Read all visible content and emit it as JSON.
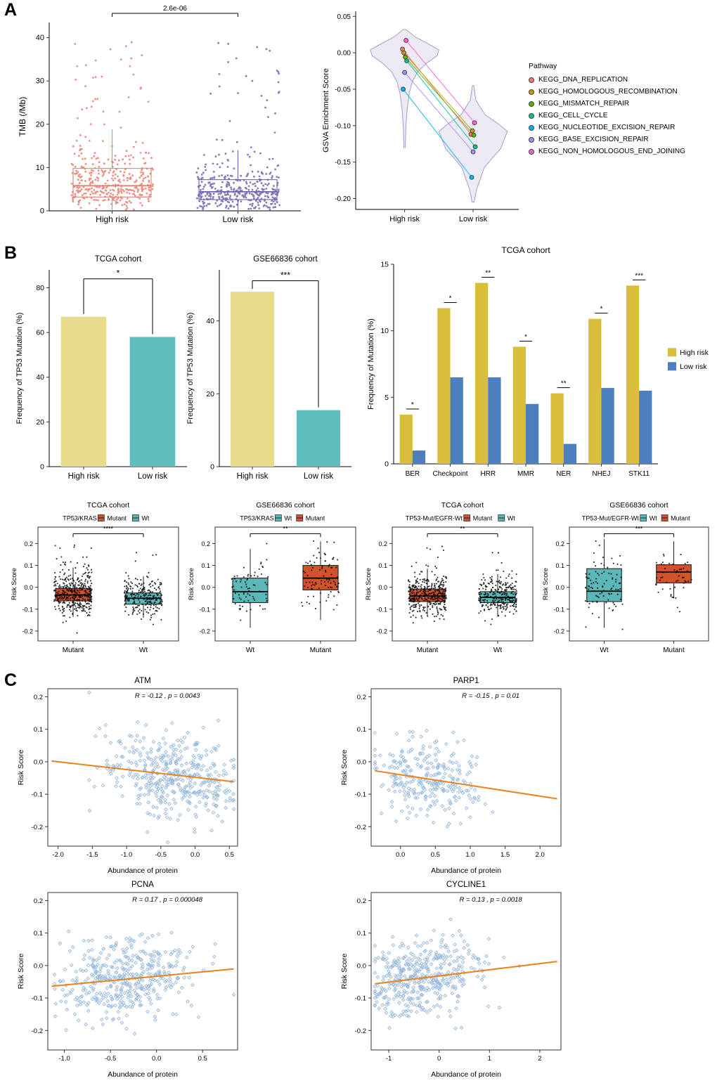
{
  "panels": {
    "a": "A",
    "b": "B",
    "c": "C"
  },
  "chart_data": [
    {
      "id": "tmb",
      "panel": "A",
      "type": "boxplot-jitter",
      "title": "",
      "ylabel": "TMB (/Mb)",
      "ylim": [
        0,
        43.5
      ],
      "yticks": [
        0,
        10,
        20,
        30,
        40
      ],
      "ytick_labels": [
        "0",
        "10",
        "20",
        "30",
        "40"
      ],
      "categories": [
        "High risk",
        "Low risk"
      ],
      "significance": {
        "label": "2.6e-06",
        "y": 45.6
      },
      "frame": "LB",
      "box_fill": "none",
      "point_color": "group",
      "groups": [
        {
          "label": "High risk",
          "color": "#E57E6E",
          "box": {
            "q1": 3.2,
            "median": 5.8,
            "q3": 9.8,
            "lo": 0.2,
            "hi": 18.8
          },
          "points": {
            "n": 380,
            "center": 5.8,
            "sd_dn": 2.6,
            "sd_up": 4.8,
            "min": 0.2,
            "max": 18.5,
            "out_frac": 0.105,
            "out_min": 19,
            "out_max": 39
          }
        },
        {
          "label": "Low risk",
          "color": "#6C64AB",
          "box": {
            "q1": 2.6,
            "median": 4.4,
            "q3": 7.2,
            "lo": 0.2,
            "hi": 14.0
          },
          "points": {
            "n": 380,
            "center": 4.4,
            "sd_dn": 2.1,
            "sd_up": 3.6,
            "min": 0.2,
            "max": 13.8,
            "out_frac": 0.09,
            "out_min": 14.5,
            "out_max": 39
          }
        }
      ]
    },
    {
      "id": "gsva",
      "panel": "A",
      "type": "violin-paired",
      "ylabel": "GSVA Enrichment Score",
      "ylim": [
        -0.215,
        0.057
      ],
      "yticks": [
        0.05,
        0.0,
        -0.05,
        -0.1,
        -0.15,
        -0.2
      ],
      "ytick_labels": [
        "0.05",
        "0.00",
        "-0.05",
        "-0.10",
        "-0.15",
        "-0.20"
      ],
      "categories": [
        "High risk",
        "Low risk"
      ],
      "violin": {
        "fill": "#EDEAF6",
        "stroke": "#9C93C6"
      },
      "profiles": [
        [
          [
            0.032,
            0.04
          ],
          [
            0.022,
            0.3
          ],
          [
            0.012,
            0.7
          ],
          [
            0.004,
            1.0
          ],
          [
            -0.004,
            0.95
          ],
          [
            -0.014,
            0.65
          ],
          [
            -0.026,
            0.38
          ],
          [
            -0.04,
            0.22
          ],
          [
            -0.055,
            0.14
          ],
          [
            -0.075,
            0.08
          ],
          [
            -0.1,
            0.04
          ],
          [
            -0.13,
            0.02
          ]
        ],
        [
          [
            -0.045,
            0.02
          ],
          [
            -0.065,
            0.08
          ],
          [
            -0.085,
            0.35
          ],
          [
            -0.098,
            0.75
          ],
          [
            -0.108,
            1.0
          ],
          [
            -0.12,
            0.9
          ],
          [
            -0.132,
            0.8
          ],
          [
            -0.145,
            0.55
          ],
          [
            -0.158,
            0.32
          ],
          [
            -0.172,
            0.22
          ],
          [
            -0.188,
            0.1
          ],
          [
            -0.205,
            0.03
          ]
        ]
      ],
      "legend_title": "Pathway",
      "pathways": [
        {
          "label": "KEGG_DNA_REPLICATION",
          "color": "#F8766D",
          "high": 0.005,
          "low": -0.112
        },
        {
          "label": "KEGG_HOMOLOGOUS_RECOMBINATION",
          "color": "#C49A00",
          "high": 0.0,
          "low": -0.107
        },
        {
          "label": "KEGG_MISMATCH_REPAIR",
          "color": "#53B400",
          "high": -0.006,
          "low": -0.113
        },
        {
          "label": "KEGG_CELL_CYCLE",
          "color": "#00C094",
          "high": -0.011,
          "low": -0.129
        },
        {
          "label": "KEGG_NUCLEOTIDE_EXCISION_REPAIR",
          "color": "#00B6EB",
          "high": -0.05,
          "low": -0.171
        },
        {
          "label": "KEGG_BASE_EXCISION_REPAIR",
          "color": "#A58AFF",
          "high": -0.027,
          "low": -0.136
        },
        {
          "label": "KEGG_NON_HOMOLOGOUS_END_JOINING",
          "color": "#FB61D7",
          "high": 0.017,
          "low": -0.096
        }
      ]
    },
    {
      "id": "tp53_tcga",
      "panel": "B",
      "type": "bar",
      "title": "TCGA cohort",
      "ylabel": "Frequency of TP53 Mutation (%)",
      "ylim": [
        0,
        88
      ],
      "yticks": [
        0,
        20,
        40,
        60,
        80
      ],
      "ytick_labels": [
        "0",
        "20",
        "40",
        "60",
        "80"
      ],
      "categories": [
        "High risk",
        "Low risk"
      ],
      "values": [
        67,
        58
      ],
      "colors": [
        "#E8DC8B",
        "#5FBFBF"
      ],
      "significance": {
        "label": "*",
        "bracket_y": 84
      }
    },
    {
      "id": "tp53_gse",
      "panel": "B",
      "type": "bar",
      "title": "GSE66836 cohort",
      "ylabel": "Frequency of TP53 Mutation (%)",
      "ylim": [
        0,
        54
      ],
      "yticks": [
        0,
        20,
        40
      ],
      "ytick_labels": [
        "0",
        "20",
        "40"
      ],
      "categories": [
        "High risk",
        "Low risk"
      ],
      "values": [
        48,
        15.5
      ],
      "colors": [
        "#E8DC8B",
        "#5FBFBF"
      ],
      "significance": {
        "label": "***",
        "bracket_y": 51
      }
    },
    {
      "id": "mutation_freq",
      "panel": "B",
      "type": "grouped-bar",
      "title": "TCGA cohort",
      "ylabel": "Frequency of Mutation (%)",
      "ylim": [
        0,
        15
      ],
      "yticks": [
        0,
        5,
        10,
        15
      ],
      "ytick_labels": [
        "0",
        "5",
        "10",
        "15"
      ],
      "categories": [
        "BER",
        "Checkpoint",
        "HRR",
        "MMR",
        "NER",
        "NHEJ",
        "STK11"
      ],
      "series": [
        {
          "name": "High risk",
          "color": "#D9BE3C",
          "values": [
            3.7,
            11.7,
            13.6,
            8.8,
            5.3,
            10.9,
            13.4
          ]
        },
        {
          "name": "Low risk",
          "color": "#4D7EBE",
          "values": [
            1.0,
            6.5,
            6.5,
            4.5,
            1.5,
            5.7,
            5.5
          ]
        }
      ],
      "significance": [
        "*",
        "*",
        "**",
        "*",
        "**",
        "*",
        "***"
      ],
      "legend_position": "right"
    },
    {
      "id": "box_tcga_kras",
      "panel": "B",
      "type": "boxplot-jitter",
      "title": "TCGA cohort",
      "legend": {
        "title": "TP53/KRAS",
        "items": [
          {
            "label": "Mutant",
            "color": "#D0532C"
          },
          {
            "label": "Wt",
            "color": "#5CB8B8"
          }
        ]
      },
      "ylabel": "Risk Score",
      "ylim": [
        -0.245,
        0.275
      ],
      "yticks": [
        -0.2,
        -0.1,
        0,
        0.1,
        0.2
      ],
      "ytick_labels": [
        "-0.2",
        "-0.1",
        "0.0",
        "0.1",
        "0.2"
      ],
      "categories": [
        "Mutant",
        "Wt"
      ],
      "significance": {
        "label": "****",
        "y": 0.245
      },
      "frame": "box",
      "box_fill": "group",
      "point_color": "#000",
      "groups": [
        {
          "label": "Mutant",
          "color": "#D0532C",
          "box": {
            "q1": -0.062,
            "median": -0.035,
            "q3": -0.006,
            "lo": -0.135,
            "hi": 0.09
          },
          "points": {
            "n": 430,
            "center": -0.034,
            "sd_dn": 0.045,
            "sd_up": 0.055,
            "min": -0.225,
            "max": 0.2,
            "out_frac": 0.02,
            "out_min": 0.1,
            "out_max": 0.2
          }
        },
        {
          "label": "Wt",
          "color": "#5CB8B8",
          "box": {
            "q1": -0.077,
            "median": -0.05,
            "q3": -0.026,
            "lo": -0.14,
            "hi": 0.05
          },
          "points": {
            "n": 250,
            "center": -0.05,
            "sd_dn": 0.042,
            "sd_up": 0.05,
            "min": -0.225,
            "max": 0.16,
            "out_frac": 0.015,
            "out_min": 0.05,
            "out_max": 0.16
          }
        }
      ]
    },
    {
      "id": "box_gse_kras",
      "panel": "B",
      "type": "boxplot-jitter",
      "title": "GSE66836 cohort",
      "legend": {
        "title": "TP53/KRAS",
        "items": [
          {
            "label": "Wt",
            "color": "#5CB8B8"
          },
          {
            "label": "Mutant",
            "color": "#D0532C"
          }
        ]
      },
      "ylabel": "Risk Score",
      "ylim": [
        -0.245,
        0.275
      ],
      "yticks": [
        -0.2,
        -0.1,
        0,
        0.1,
        0.2
      ],
      "ytick_labels": [
        "-0.2",
        "-0.1",
        "0.0",
        "0.1",
        "0.2"
      ],
      "categories": [
        "Wt",
        "Mutant"
      ],
      "significance": {
        "label": "**",
        "y": 0.245
      },
      "frame": "box",
      "box_fill": "group",
      "point_color": "#000",
      "groups": [
        {
          "label": "Wt",
          "color": "#5CB8B8",
          "box": {
            "q1": -0.07,
            "median": -0.02,
            "q3": 0.042,
            "lo": -0.185,
            "hi": 0.175
          },
          "points": {
            "n": 72,
            "center": -0.015,
            "sd_dn": 0.07,
            "sd_up": 0.07,
            "min": -0.19,
            "max": 0.2,
            "out_frac": 0.0,
            "out_min": 0,
            "out_max": 0
          }
        },
        {
          "label": "Mutant",
          "color": "#D0532C",
          "box": {
            "q1": -0.012,
            "median": 0.042,
            "q3": 0.1,
            "lo": -0.15,
            "hi": 0.21
          },
          "points": {
            "n": 92,
            "center": 0.04,
            "sd_dn": 0.07,
            "sd_up": 0.07,
            "min": -0.16,
            "max": 0.22,
            "out_frac": 0.0,
            "out_min": 0,
            "out_max": 0
          }
        }
      ]
    },
    {
      "id": "box_tcga_egfr",
      "panel": "B",
      "type": "boxplot-jitter",
      "title": "TCGA cohort",
      "legend": {
        "title": "TP53-Mut/EGFR-Wt",
        "items": [
          {
            "label": "Mutant",
            "color": "#D0532C"
          },
          {
            "label": "Wt",
            "color": "#5CB8B8"
          }
        ]
      },
      "ylabel": "Risk Score",
      "ylim": [
        -0.245,
        0.275
      ],
      "yticks": [
        -0.2,
        -0.1,
        0,
        0.1,
        0.2
      ],
      "ytick_labels": [
        "-0.2",
        "-0.1",
        "0.0",
        "0.1",
        "0.2"
      ],
      "categories": [
        "Mutant",
        "Wt"
      ],
      "significance": {
        "label": "**",
        "y": 0.245
      },
      "frame": "box",
      "box_fill": "group",
      "point_color": "#000",
      "groups": [
        {
          "label": "Mutant",
          "color": "#D0532C",
          "box": {
            "q1": -0.065,
            "median": -0.04,
            "q3": -0.008,
            "lo": -0.13,
            "hi": 0.085
          },
          "points": {
            "n": 400,
            "center": -0.037,
            "sd_dn": 0.045,
            "sd_up": 0.05,
            "min": -0.22,
            "max": 0.2,
            "out_frac": 0.02,
            "out_min": 0.09,
            "out_max": 0.2
          }
        },
        {
          "label": "Wt",
          "color": "#5CB8B8",
          "box": {
            "q1": -0.07,
            "median": -0.046,
            "q3": -0.02,
            "lo": -0.135,
            "hi": 0.06
          },
          "points": {
            "n": 300,
            "center": -0.045,
            "sd_dn": 0.042,
            "sd_up": 0.048,
            "min": -0.22,
            "max": 0.18,
            "out_frac": 0.015,
            "out_min": 0.06,
            "out_max": 0.18
          }
        }
      ]
    },
    {
      "id": "box_gse_egfr",
      "panel": "B",
      "type": "boxplot-jitter",
      "title": "GSE66836 cohort",
      "legend": {
        "title": "TP53-Mut/EGFR-Wt",
        "items": [
          {
            "label": "Wt",
            "color": "#5CB8B8"
          },
          {
            "label": "Mutant",
            "color": "#D0532C"
          }
        ]
      },
      "ylabel": "Risk Score",
      "ylim": [
        -0.245,
        0.275
      ],
      "yticks": [
        -0.2,
        -0.1,
        0,
        0.1,
        0.2
      ],
      "ytick_labels": [
        "-0.2",
        "-0.1",
        "0.0",
        "0.1",
        "0.2"
      ],
      "categories": [
        "Wt",
        "Mutant"
      ],
      "significance": {
        "label": "***",
        "y": 0.245
      },
      "frame": "box",
      "box_fill": "group",
      "point_color": "#000",
      "groups": [
        {
          "label": "Wt",
          "color": "#5CB8B8",
          "box": {
            "q1": -0.065,
            "median": -0.018,
            "q3": 0.085,
            "lo": -0.185,
            "hi": 0.22
          },
          "points": {
            "n": 95,
            "center": 0.0,
            "sd_dn": 0.075,
            "sd_up": 0.08,
            "min": -0.21,
            "max": 0.24,
            "out_frac": 0.0,
            "out_min": 0,
            "out_max": 0
          }
        },
        {
          "label": "Mutant",
          "color": "#D0532C",
          "box": {
            "q1": 0.02,
            "median": 0.07,
            "q3": 0.103,
            "lo": -0.05,
            "hi": 0.21
          },
          "points": {
            "n": 52,
            "center": 0.06,
            "sd_dn": 0.07,
            "sd_up": 0.06,
            "min": -0.17,
            "max": 0.22,
            "out_frac": 0.0,
            "out_min": 0,
            "out_max": 0
          }
        }
      ]
    },
    {
      "id": "atm",
      "panel": "C",
      "type": "scatter",
      "title": "ATM",
      "xlabel": "Abundance of protein",
      "ylabel": "Risk Score",
      "annotation": "R = -0.12 , p = 0.0043",
      "xlim": [
        -2.15,
        0.62
      ],
      "xticks": [
        -2.0,
        -1.5,
        -1.0,
        -0.5,
        0.0,
        0.5
      ],
      "xtick_labels": [
        "-2.0",
        "-1.5",
        "-1.0",
        "-0.5",
        "0.0",
        "0.5"
      ],
      "ylim": [
        -0.26,
        0.225
      ],
      "yticks": [
        -0.2,
        -0.1,
        0,
        0.1,
        0.2
      ],
      "ytick_labels": [
        "-0.2",
        "-0.1",
        "0.0",
        "0.1",
        "0.2"
      ],
      "n": 420,
      "x_mean": -0.35,
      "x_sd": 0.5,
      "slope": -0.024,
      "intercept": -0.048,
      "resid_sd": 0.062,
      "point_color": "#7BA6D5",
      "line_color": "#E8821E"
    },
    {
      "id": "parp1",
      "panel": "C",
      "type": "scatter",
      "title": "PARP1",
      "xlabel": "Abundance of protein",
      "ylabel": "Risk Score",
      "annotation": "R = -0.15 , p = 0.01",
      "xlim": [
        -0.42,
        2.3
      ],
      "xticks": [
        0.0,
        0.5,
        1.0,
        1.5,
        2.0
      ],
      "xtick_labels": [
        "0.0",
        "0.5",
        "1.0",
        "1.5",
        "2.0"
      ],
      "ylim": [
        -0.26,
        0.225
      ],
      "yticks": [
        -0.2,
        -0.1,
        0,
        0.1,
        0.2
      ],
      "ytick_labels": [
        "-0.2",
        "-0.1",
        "0.0",
        "0.1",
        "0.2"
      ],
      "n": 275,
      "x_mean": 0.38,
      "x_sd": 0.42,
      "slope": -0.033,
      "intercept": -0.04,
      "resid_sd": 0.06,
      "point_color": "#7BA6D5",
      "line_color": "#E8821E"
    },
    {
      "id": "pcna",
      "panel": "C",
      "type": "scatter",
      "title": "PCNA",
      "xlabel": "Abundance of protein",
      "ylabel": "Risk Score",
      "annotation": "R = 0.17 , p = 0.000048",
      "xlim": [
        -1.18,
        0.88
      ],
      "xticks": [
        -1.0,
        -0.5,
        0.0,
        0.5
      ],
      "xtick_labels": [
        "-1.0",
        "-0.5",
        "0.0",
        "0.5"
      ],
      "ylim": [
        -0.26,
        0.225
      ],
      "yticks": [
        -0.2,
        -0.1,
        0,
        0.1,
        0.2
      ],
      "ytick_labels": [
        "-0.2",
        "-0.1",
        "0.0",
        "0.1",
        "0.2"
      ],
      "n": 430,
      "x_mean": -0.32,
      "x_sd": 0.38,
      "slope": 0.027,
      "intercept": -0.033,
      "resid_sd": 0.064,
      "point_color": "#7BA6D5",
      "line_color": "#E8821E"
    },
    {
      "id": "cycline1",
      "panel": "C",
      "type": "scatter",
      "title": "CYCLINE1",
      "xlabel": "Abundance of protein",
      "ylabel": "Risk Score",
      "annotation": "R = 0.13 , p = 0.0018",
      "xlim": [
        -1.35,
        2.42
      ],
      "xticks": [
        -1,
        0,
        1,
        2
      ],
      "xtick_labels": [
        "-1",
        "0",
        "1",
        "2"
      ],
      "ylim": [
        -0.26,
        0.225
      ],
      "yticks": [
        -0.2,
        -0.1,
        0,
        0.1,
        0.2
      ],
      "ytick_labels": [
        "-0.2",
        "-0.1",
        "0.0",
        "0.1",
        "0.2"
      ],
      "n": 430,
      "x_mean": -0.42,
      "x_sd": 0.6,
      "slope": 0.019,
      "intercept": -0.032,
      "resid_sd": 0.06,
      "point_color": "#7BA6D5",
      "line_color": "#E8821E"
    }
  ]
}
